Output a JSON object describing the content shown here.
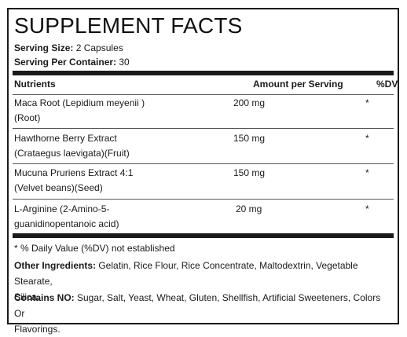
{
  "title": "SUPPLEMENT FACTS",
  "serving_size": {
    "label": "Serving Size:",
    "value": "2 Capsules"
  },
  "servings_per_container": {
    "label": "Serving Per Container:",
    "value": "30"
  },
  "columns": {
    "nutrients": "Nutrients",
    "amount": "Amount per Serving",
    "dv": "%DV"
  },
  "nutrients": [
    {
      "line1": "Maca Root (Lepidium meyenii )",
      "line2": "(Root)",
      "amount": "200 mg",
      "dv": "*"
    },
    {
      "line1": "Hawthorne Berry Extract",
      "line2": "(Crataegus laevigata)(Fruit)",
      "amount": "150 mg",
      "dv": "*"
    },
    {
      "line1": "Mucuna Pruriens Extract 4:1",
      "line2": "(Velvet beans)(Seed)",
      "amount": "150 mg",
      "dv": "*"
    },
    {
      "line1": "L-Arginine (2-Amino-5-",
      "line2": "guanidinopentanoic acid)",
      "amount": "20 mg",
      "dv": "*"
    }
  ],
  "footnote": "* % Daily Value (%DV) not established",
  "other_ingredients": {
    "label": "Other Ingredients:",
    "line1": " Gelatin, Rice Flour, Rice Concentrate, Maltodextrin, Vegetable Stearate,",
    "line2": "Silica."
  },
  "contains_no": {
    "label": "Contains NO:",
    "line1": " Sugar, Salt, Yeast, Wheat, Gluten, Shellfish, Artificial Sweeteners, Colors Or",
    "line2": "Flavorings."
  }
}
